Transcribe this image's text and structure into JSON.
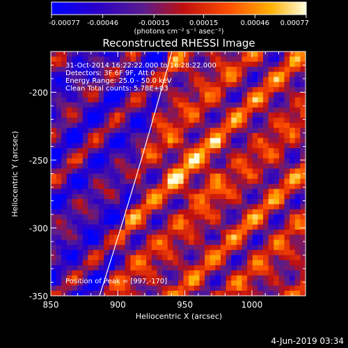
{
  "chart_data": {
    "type": "heatmap",
    "title": "Reconstructed RHESSI Image",
    "xlabel": "Heliocentric X (arcsec)",
    "ylabel": "Heliocentric Y (arcsec)",
    "xlim": [
      850,
      1040
    ],
    "ylim": [
      -350,
      -170
    ],
    "x_ticks": [
      "850",
      "900",
      "950",
      "1000"
    ],
    "y_ticks": [
      "-200",
      "-250",
      "-300",
      "-350"
    ],
    "colorbar": {
      "ticks": [
        "-0.00077",
        "-0.00046",
        "-0.00015",
        "0.00015",
        "0.00046",
        "0.00077"
      ],
      "range": [
        -0.00077,
        0.00077
      ],
      "units_label": "(photons cm⁻² s⁻¹ asec⁻²)"
    },
    "annotations": [
      "31-Oct-2014 16:22:22.000 to 16:28:22.000",
      "Detectors: 3F 6F 9F, Att 0",
      "Energy Range: 25.0 - 50.0 keV",
      "Clean     Total counts: 5.78E+03"
    ],
    "peak_text": "Position of Peak = [997,-170]",
    "peak": [
      997,
      -170
    ],
    "limb_line": true
  },
  "footer": {
    "date": "4-Jun-2019 03:34"
  }
}
